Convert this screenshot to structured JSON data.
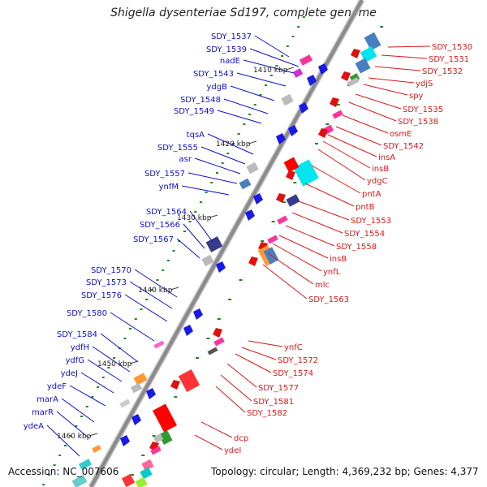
{
  "title": "Shigella dysenteriae Sd197, complete genome",
  "footer": {
    "accession": "Accession: NC_007606",
    "summary": "Topology: circular; Length: 4,369,232 bp; Genes: 4,377"
  },
  "colors": {
    "left_label": "#1010c8",
    "right_label": "#d81818",
    "backbone": "#8a8a8a",
    "tick": "#1a8a1a"
  },
  "kbp_ticks": [
    "1410 kbp",
    "1420 kbp",
    "1430 kbp",
    "1440 kbp",
    "1450 kbp",
    "1460 kbp"
  ],
  "left_genes": [
    "SDY_1537",
    "SDY_1539",
    "nadE",
    "SDY_1543",
    "ydgB",
    "SDY_1548",
    "SDY_1549",
    "tqsA",
    "SDY_1555",
    "asr",
    "SDY_1557",
    "ynfM",
    "SDY_1564",
    "SDY_1566",
    "SDY_1567",
    "SDY_1570",
    "SDY_1573",
    "SDY_1576",
    "SDY_1580",
    "SDY_1584",
    "ydfH",
    "ydfG",
    "ydeJ",
    "ydeF",
    "marA",
    "marR",
    "ydeA"
  ],
  "right_genes": [
    "SDY_1530",
    "SDY_1531",
    "SDY_1532",
    "ydjS",
    "spy",
    "SDY_1535",
    "SDY_1538",
    "osmE",
    "SDY_1542",
    "insA",
    "insB",
    "ydgC",
    "pntA",
    "pntB",
    "SDY_1553",
    "SDY_1554",
    "SDY_1558",
    "insB",
    "ynfL",
    "mlc",
    "SDY_1563",
    "ynfC",
    "SDY_1572",
    "SDY_1574",
    "SDY_1577",
    "SDY_1581",
    "SDY_1582",
    "dcp",
    "ydeI"
  ]
}
